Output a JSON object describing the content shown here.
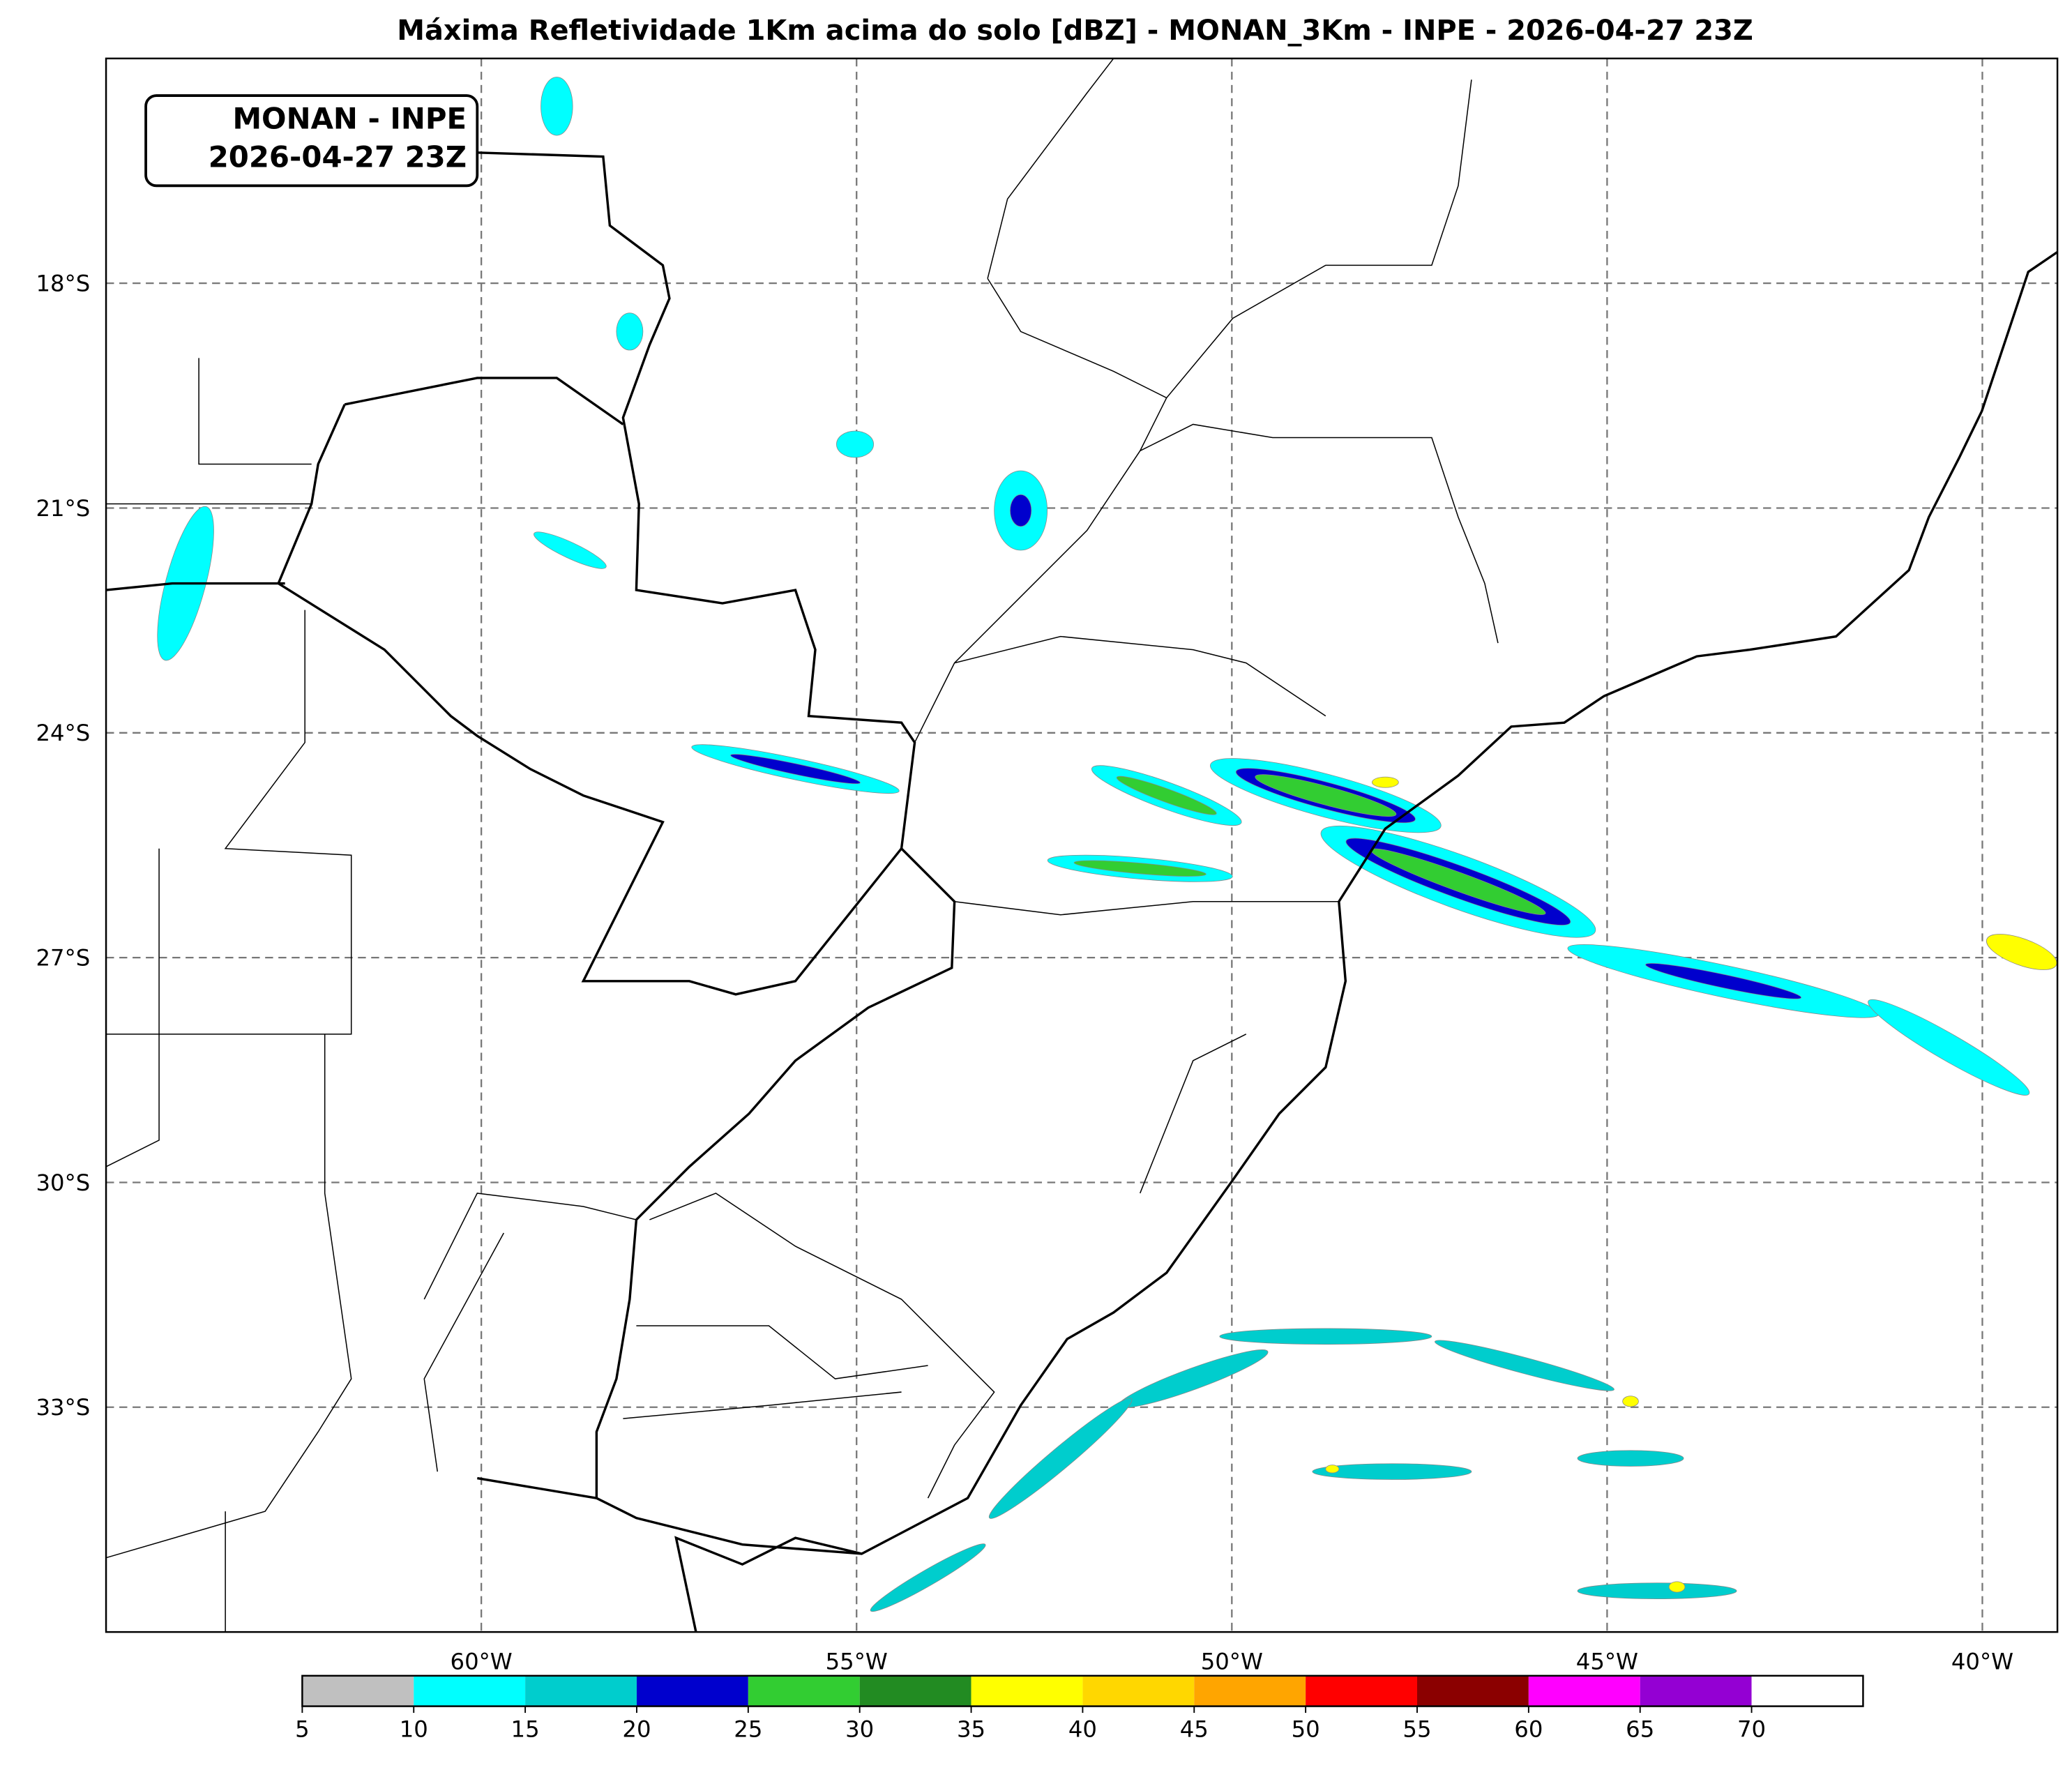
{
  "title": "Máxima Refletividade 1Km acima do solo [dBZ] - MONAN_3Km - INPE - 2026-04-27 23Z",
  "label_box": {
    "lines": [
      "MONAN - INPE",
      "2026-04-27 23Z"
    ]
  },
  "lon_range": [
    -65,
    -39
  ],
  "lat_range": [
    -36,
    -15
  ],
  "lat_ticks": [
    {
      "value": -18,
      "label": "18°S"
    },
    {
      "value": -21,
      "label": "21°S"
    },
    {
      "value": -24,
      "label": "24°S"
    },
    {
      "value": -27,
      "label": "27°S"
    },
    {
      "value": -30,
      "label": "30°S"
    },
    {
      "value": -33,
      "label": "33°S"
    }
  ],
  "lon_ticks": [
    {
      "value": -60,
      "label": "60°W"
    },
    {
      "value": -55,
      "label": "55°W"
    },
    {
      "value": -50,
      "label": "50°W"
    },
    {
      "value": -45,
      "label": "45°W"
    },
    {
      "value": -40,
      "label": "40°W"
    }
  ],
  "colorbar": {
    "ticks": [
      5,
      10,
      15,
      20,
      25,
      30,
      35,
      40,
      45,
      50,
      55,
      60,
      65,
      70
    ],
    "colors": [
      "#c0c0c0",
      "#00ffff",
      "#00cdcd",
      "#0000cd",
      "#32cd32",
      "#228b22",
      "#ffff00",
      "#ffd700",
      "#ffa500",
      "#ff0000",
      "#8b0000",
      "#ff00ff",
      "#9400d3",
      "#ffffff"
    ]
  }
}
